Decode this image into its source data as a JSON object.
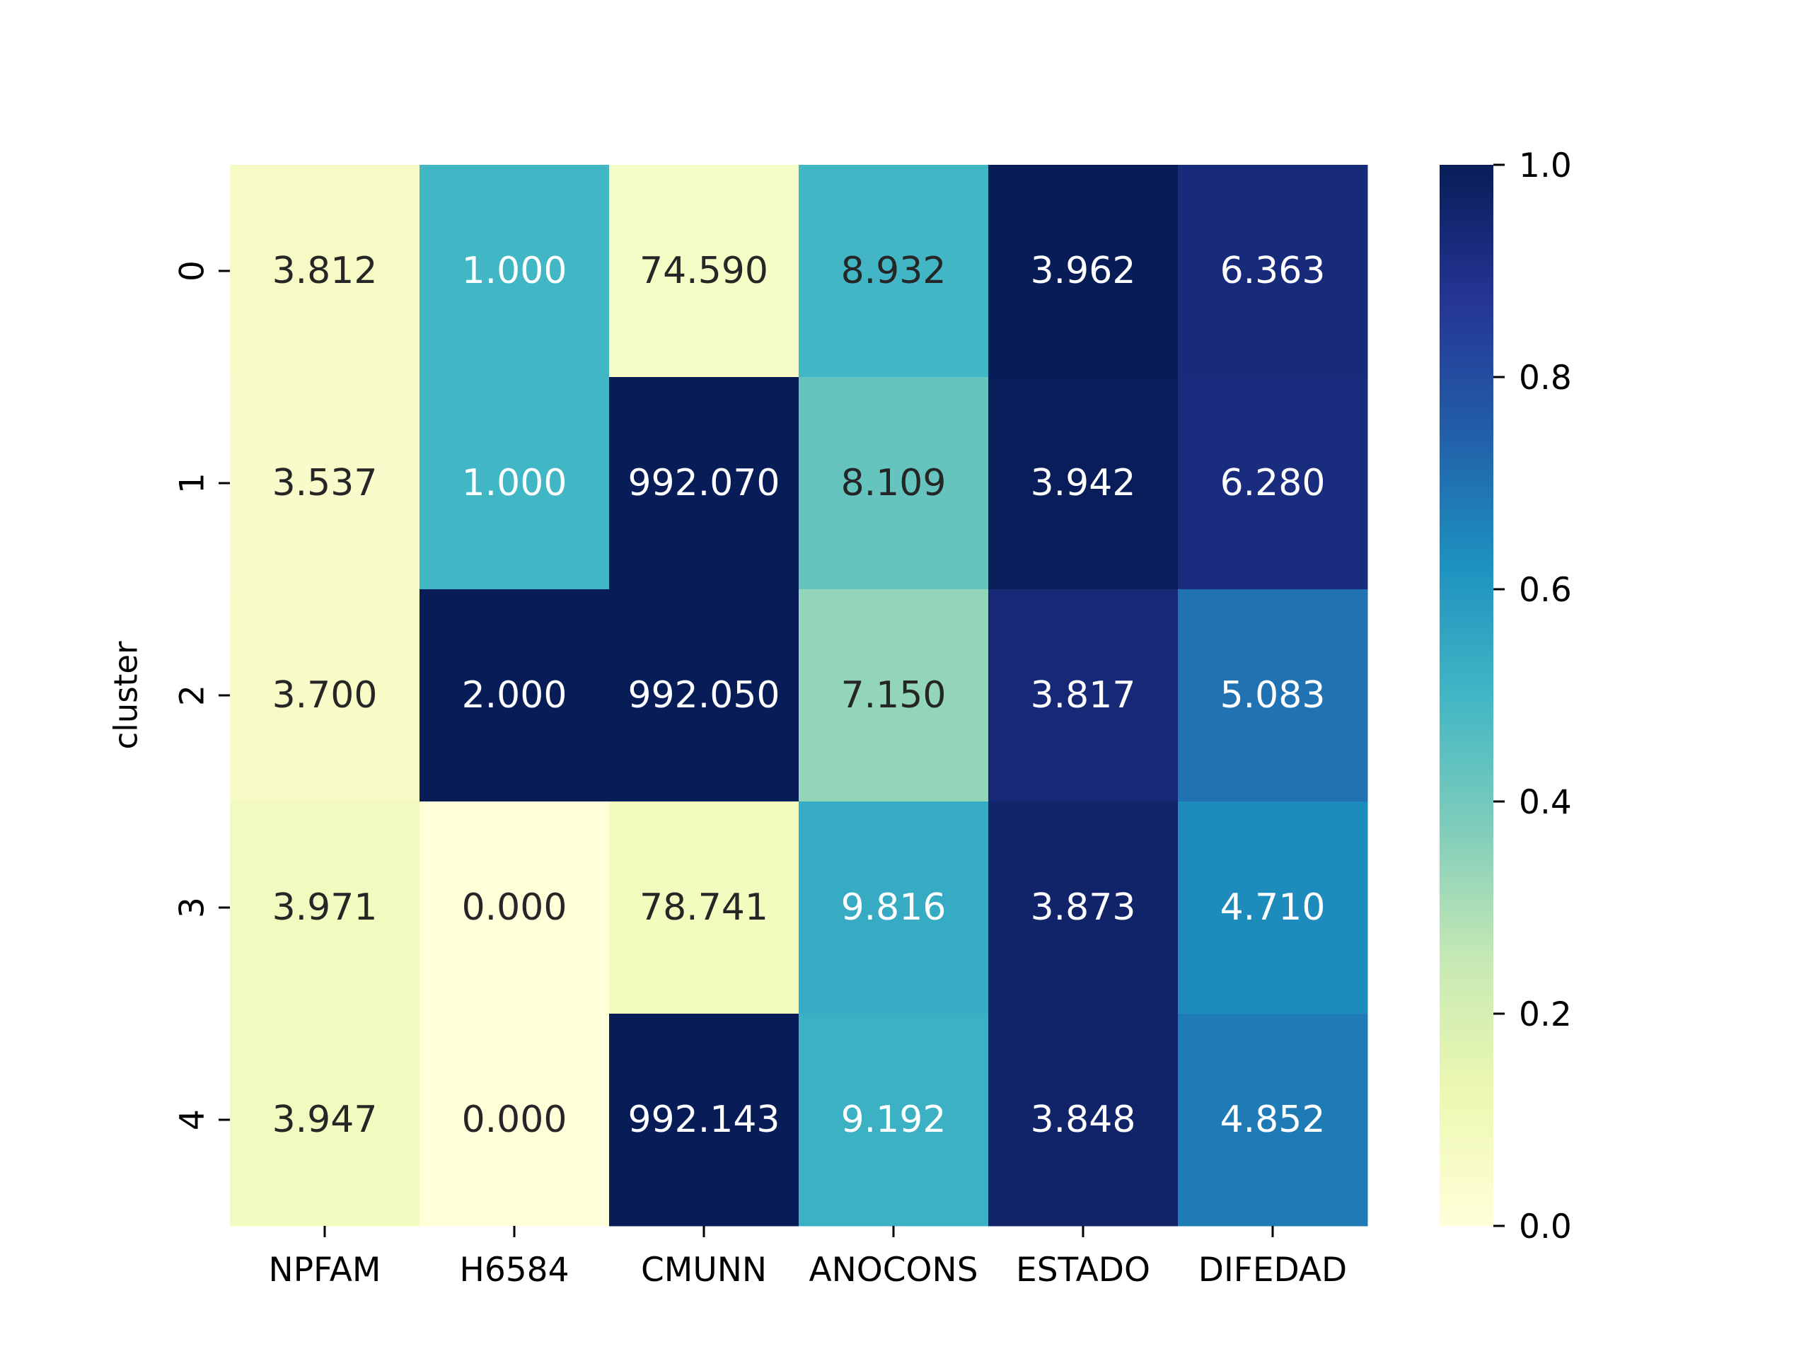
{
  "chart_data": {
    "type": "heatmap",
    "title": "",
    "xlabel": "",
    "ylabel": "cluster",
    "columns": [
      "NPFAM",
      "H6584",
      "CMUNN",
      "ANOCONS",
      "ESTADO",
      "DIFEDAD"
    ],
    "rows": [
      "0",
      "1",
      "2",
      "3",
      "4"
    ],
    "values": [
      [
        "3.812",
        "1.000",
        "74.590",
        "8.932",
        "3.962",
        "6.363"
      ],
      [
        "3.537",
        "1.000",
        "992.070",
        "8.109",
        "3.942",
        "6.280"
      ],
      [
        "3.700",
        "2.000",
        "992.050",
        "7.150",
        "3.817",
        "5.083"
      ],
      [
        "3.971",
        "0.000",
        "78.741",
        "9.816",
        "3.873",
        "4.710"
      ],
      [
        "3.947",
        "0.000",
        "992.143",
        "9.192",
        "3.848",
        "4.852"
      ]
    ],
    "normalized": [
      [
        0.063,
        0.5,
        0.06,
        0.498,
        1.0,
        0.929
      ],
      [
        0.047,
        0.5,
        1.0,
        0.425,
        0.998,
        0.921
      ],
      [
        0.055,
        1.0,
        1.0,
        0.34,
        0.938,
        0.7
      ],
      [
        0.082,
        0.0,
        0.08,
        0.538,
        0.962,
        0.64
      ],
      [
        0.081,
        0.0,
        1.0,
        0.518,
        0.962,
        0.68
      ]
    ],
    "colorbar": {
      "range": [
        0.0,
        1.0
      ],
      "ticks": [
        "0.0",
        "0.2",
        "0.4",
        "0.6",
        "0.8",
        "1.0"
      ],
      "colormap": "YlGnBu",
      "stops": [
        "#ffffd9",
        "#edf8b1",
        "#c7e9b4",
        "#7fcdbb",
        "#41b6c4",
        "#1d91c0",
        "#225ea8",
        "#253494",
        "#081d58"
      ]
    },
    "annotation_colors": {
      "dark_text": "#262626",
      "light_text": "#ffffff"
    },
    "grid": false
  }
}
